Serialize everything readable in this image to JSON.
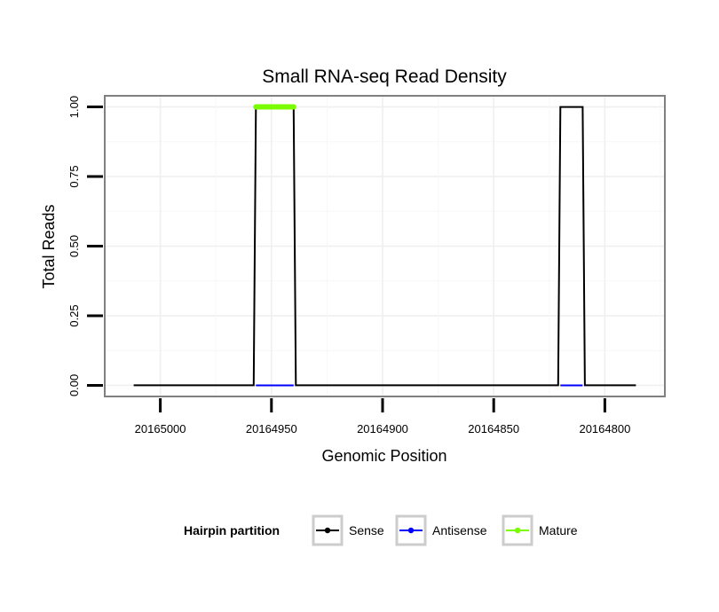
{
  "chart_data": {
    "type": "line",
    "title": "Small RNA-seq Read Density",
    "xlabel": "Genomic Position",
    "ylabel": "Total Reads",
    "x_reversed": true,
    "xlim": [
      20165025,
      20164773
    ],
    "ylim": [
      -0.04,
      1.04
    ],
    "x_ticks": [
      20165000,
      20164950,
      20164900,
      20164850,
      20164800
    ],
    "x_tick_labels": [
      "20165000",
      "20164950",
      "20164900",
      "20164850",
      "20164800"
    ],
    "y_ticks": [
      0.0,
      0.25,
      0.5,
      0.75,
      1.0
    ],
    "y_tick_labels": [
      "0.00",
      "0.25",
      "0.50",
      "0.75",
      "1.00"
    ],
    "grid": true,
    "legend": {
      "title": "Hairpin partition",
      "position": "bottom",
      "entries": [
        {
          "label": "Sense",
          "color": "#000000"
        },
        {
          "label": "Antisense",
          "color": "#0000ff"
        },
        {
          "label": "Mature",
          "color": "#7cfc00"
        }
      ]
    },
    "series": [
      {
        "name": "Sense",
        "color": "#000000",
        "x": [
          20165012,
          20164958,
          20164957,
          20164940,
          20164939,
          20164821,
          20164820,
          20164810,
          20164809,
          20164786
        ],
        "y": [
          0,
          0,
          1,
          1,
          0,
          0,
          1,
          1,
          0,
          0
        ]
      },
      {
        "name": "Antisense",
        "color": "#0000ff",
        "segments": [
          {
            "x": [
              20164957,
              20164940
            ],
            "y": [
              0,
              0
            ]
          },
          {
            "x": [
              20164820,
              20164810
            ],
            "y": [
              0,
              0
            ]
          }
        ]
      },
      {
        "name": "Mature",
        "color": "#7cfc00",
        "segments": [
          {
            "x": [
              20164957,
              20164940
            ],
            "y": [
              1,
              1
            ]
          }
        ]
      }
    ]
  }
}
